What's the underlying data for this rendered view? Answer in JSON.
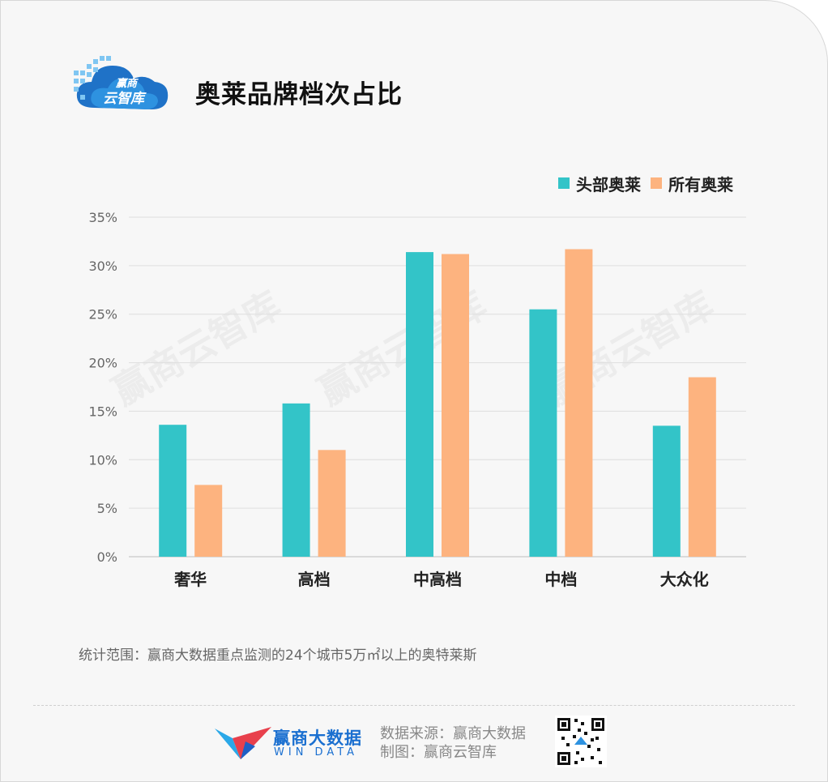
{
  "header": {
    "logo_top": "赢商",
    "logo_main": "云智库",
    "title": "奥莱品牌档次占比"
  },
  "chart_data": {
    "type": "bar",
    "title": "奥莱品牌档次占比",
    "categories": [
      "奢华",
      "高档",
      "中高档",
      "中档",
      "大众化"
    ],
    "series": [
      {
        "name": "头部奥莱",
        "color": "#33c4c8",
        "values": [
          13.6,
          15.8,
          31.4,
          25.5,
          13.5
        ]
      },
      {
        "name": "所有奥莱",
        "color": "#fdb37f",
        "values": [
          7.4,
          11.0,
          31.2,
          31.7,
          18.5
        ]
      }
    ],
    "yticks": [
      "0%",
      "5%",
      "10%",
      "15%",
      "20%",
      "25%",
      "30%",
      "35%"
    ],
    "ylim": [
      0,
      35
    ],
    "ylabel": "",
    "xlabel": "",
    "grid": true,
    "legend_position": "top-right",
    "watermark": "赢商云智库"
  },
  "note": "统计范围：赢商大数据重点监测的24个城市5万㎡以上的奥特莱斯",
  "footer": {
    "brand_name": "赢商大数据",
    "brand_sub": "WIN DATA",
    "source_line1": "数据来源：赢商大数据",
    "source_line2": "制图：赢商云智库"
  }
}
